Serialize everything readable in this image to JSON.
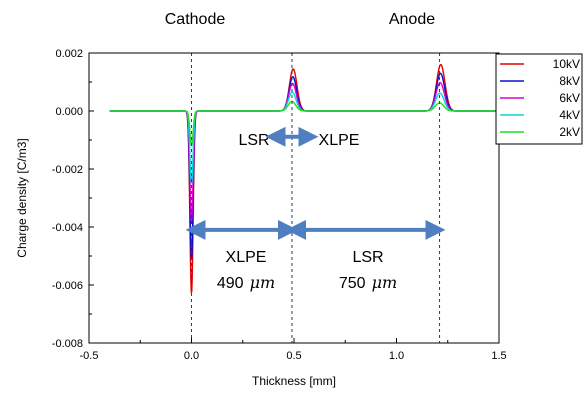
{
  "chart_data": {
    "type": "line",
    "xlabel": "Thickness [mm]",
    "ylabel": "Charge density [C/m3]",
    "xlim": [
      -0.5,
      1.5
    ],
    "ylim": [
      -0.008,
      0.002
    ],
    "xticks": [
      -0.5,
      0.0,
      0.5,
      1.0,
      1.5
    ],
    "xtick_labels": [
      "-0.5",
      "0.0",
      "0.5",
      "1.0",
      "1.5"
    ],
    "yticks": [
      0.002,
      0.0,
      -0.002,
      -0.004,
      -0.006,
      -0.008
    ],
    "ytick_labels": [
      "0.002",
      "0.000",
      "-0.002",
      "-0.004",
      "-0.006",
      "-0.008"
    ],
    "grid": false,
    "legend_position": "right",
    "series": [
      {
        "name": "10kV",
        "color": "#e00000",
        "cathode_peak": -0.0063,
        "interface_peak": 0.00145,
        "anode_peak": 0.0016
      },
      {
        "name": "8kV",
        "color": "#1010c8",
        "cathode_peak": -0.0051,
        "interface_peak": 0.00118,
        "anode_peak": 0.0013
      },
      {
        "name": "6kV",
        "color": "#d400d4",
        "cathode_peak": -0.0038,
        "interface_peak": 0.00095,
        "anode_peak": 0.00098
      },
      {
        "name": "4kV",
        "color": "#00d8d8",
        "cathode_peak": -0.0025,
        "interface_peak": 0.00065,
        "anode_peak": 0.00062
      },
      {
        "name": "2kV",
        "color": "#20dd20",
        "cathode_peak": -0.0012,
        "interface_peak": 0.00033,
        "anode_peak": 0.00028
      }
    ],
    "x_range": [
      -0.4,
      1.49
    ],
    "peak_positions": {
      "cathode": 0.0,
      "interface": 0.49,
      "anode": 1.21
    },
    "dashed_lines_x": [
      0.0,
      0.49,
      1.21
    ],
    "annotations": {
      "cathode": "Cathode",
      "anode": "Anode",
      "left_material": "LSR",
      "right_material": "XLPE",
      "xlpe_label": "XLPE",
      "xlpe_thickness_value": "490",
      "lsr_label": "LSR",
      "lsr_thickness_value": "750",
      "unit": "μm"
    },
    "arrows": {
      "interface_arrow": {
        "x1": 0.41,
        "x2": 0.57,
        "y": -0.00089
      },
      "xlpe_arrow": {
        "x1": 0.02,
        "x2": 0.47,
        "y": -0.0041
      },
      "lsr_arrow": {
        "x1": 0.51,
        "x2": 1.19,
        "y": -0.0041
      }
    }
  }
}
